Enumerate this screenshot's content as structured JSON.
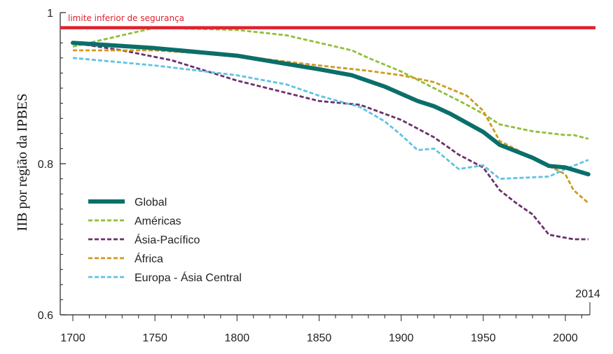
{
  "chart_data": {
    "type": "line",
    "ylabel": "IIB por região da IPBES",
    "xlim": [
      1700,
      2014
    ],
    "ylim": [
      0.6,
      1.0
    ],
    "xticks": [
      1700,
      1750,
      1800,
      1850,
      1900,
      1950,
      2000
    ],
    "yticks": [
      0.6,
      0.8,
      1.0
    ],
    "ytick_labels": [
      "0.6",
      "0.8",
      "1"
    ],
    "end_label": "2014",
    "legend_position": "lower-left",
    "threshold": {
      "label": "limite inferior de segurança",
      "value": 0.98,
      "color": "#e0202e"
    },
    "series": [
      {
        "name": "Global",
        "color": "#0b6e6a",
        "style": "solid",
        "x": [
          1700,
          1750,
          1800,
          1850,
          1870,
          1890,
          1910,
          1920,
          1930,
          1950,
          1960,
          1980,
          1990,
          2000,
          2014
        ],
        "y": [
          0.96,
          0.953,
          0.943,
          0.925,
          0.917,
          0.902,
          0.883,
          0.876,
          0.866,
          0.842,
          0.825,
          0.808,
          0.797,
          0.795,
          0.786
        ]
      },
      {
        "name": "Américas",
        "color": "#8fbf3a",
        "style": "dashed",
        "x": [
          1700,
          1750,
          1800,
          1830,
          1850,
          1870,
          1880,
          1900,
          1920,
          1940,
          1950,
          1960,
          1980,
          2000,
          2005,
          2014
        ],
        "y": [
          0.955,
          0.98,
          0.977,
          0.97,
          0.96,
          0.95,
          0.94,
          0.922,
          0.9,
          0.878,
          0.866,
          0.852,
          0.843,
          0.838,
          0.838,
          0.833
        ]
      },
      {
        "name": "Ásia-Pacífico",
        "color": "#6b2f6b",
        "style": "dashed",
        "x": [
          1700,
          1730,
          1760,
          1800,
          1850,
          1875,
          1900,
          1920,
          1935,
          1950,
          1960,
          1970,
          1980,
          1990,
          2005,
          2014
        ],
        "y": [
          0.96,
          0.95,
          0.937,
          0.91,
          0.883,
          0.878,
          0.858,
          0.835,
          0.812,
          0.795,
          0.765,
          0.748,
          0.733,
          0.706,
          0.7,
          0.7
        ]
      },
      {
        "name": "África",
        "color": "#d09a1e",
        "style": "dashed",
        "x": [
          1700,
          1750,
          1800,
          1850,
          1880,
          1900,
          1920,
          1940,
          1950,
          1960,
          1980,
          2000,
          2005,
          2014
        ],
        "y": [
          0.95,
          0.95,
          0.943,
          0.93,
          0.923,
          0.917,
          0.908,
          0.89,
          0.87,
          0.83,
          0.808,
          0.786,
          0.765,
          0.748
        ]
      },
      {
        "name": "Europa - Ásia Central",
        "color": "#5ec3e3",
        "style": "dashed",
        "x": [
          1700,
          1750,
          1800,
          1830,
          1850,
          1875,
          1890,
          1900,
          1910,
          1920,
          1935,
          1950,
          1960,
          1990,
          2000,
          2014
        ],
        "y": [
          0.94,
          0.93,
          0.917,
          0.905,
          0.89,
          0.875,
          0.856,
          0.838,
          0.818,
          0.82,
          0.793,
          0.798,
          0.78,
          0.783,
          0.793,
          0.805
        ]
      }
    ]
  }
}
